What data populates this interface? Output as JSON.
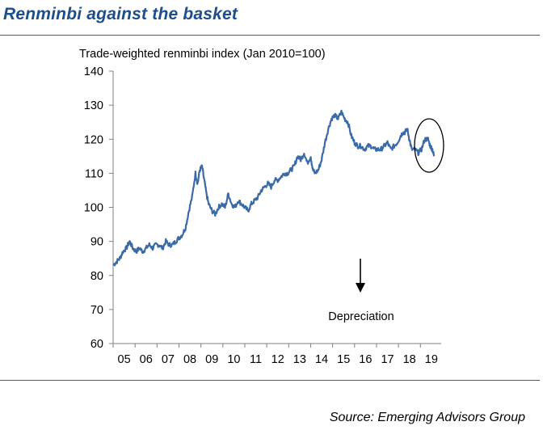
{
  "title": "Renminbi against the basket",
  "source": "Source:  Emerging Advisors Group",
  "chart_data": {
    "type": "line",
    "subtitle": "Trade-weighted renminbi index (Jan 2010=100)",
    "xlabel": "",
    "ylabel": "",
    "x_ticks": [
      "05",
      "06",
      "07",
      "08",
      "09",
      "10",
      "11",
      "12",
      "13",
      "14",
      "15",
      "16",
      "17",
      "18",
      "19"
    ],
    "xlim": [
      2005.0,
      2019.8
    ],
    "ylim": [
      60,
      140
    ],
    "y_ticks": [
      60,
      70,
      80,
      90,
      100,
      110,
      120,
      130,
      140
    ],
    "grid": false,
    "series": [
      {
        "color": "#3a6aa8",
        "x": [
          2005.0,
          2005.15,
          2005.3,
          2005.45,
          2005.6,
          2005.75,
          2005.9,
          2006.05,
          2006.2,
          2006.35,
          2006.5,
          2006.65,
          2006.8,
          2006.95,
          2007.1,
          2007.25,
          2007.4,
          2007.55,
          2007.7,
          2007.85,
          2008.0,
          2008.15,
          2008.3,
          2008.45,
          2008.6,
          2008.75,
          2008.85,
          2008.95,
          2009.05,
          2009.15,
          2009.25,
          2009.35,
          2009.5,
          2009.65,
          2009.8,
          2009.95,
          2010.1,
          2010.25,
          2010.4,
          2010.55,
          2010.7,
          2010.85,
          2011.0,
          2011.15,
          2011.3,
          2011.45,
          2011.6,
          2011.75,
          2011.9,
          2012.05,
          2012.2,
          2012.35,
          2012.5,
          2012.65,
          2012.8,
          2012.95,
          2013.1,
          2013.25,
          2013.4,
          2013.55,
          2013.7,
          2013.85,
          2014.0,
          2014.1,
          2014.2,
          2014.35,
          2014.5,
          2014.65,
          2014.8,
          2014.95,
          2015.1,
          2015.25,
          2015.4,
          2015.55,
          2015.7,
          2015.85,
          2016.0,
          2016.15,
          2016.3,
          2016.45,
          2016.6,
          2016.75,
          2016.9,
          2017.05,
          2017.2,
          2017.35,
          2017.5,
          2017.65,
          2017.8,
          2017.95,
          2018.1,
          2018.2,
          2018.3,
          2018.4,
          2018.5,
          2018.6,
          2018.75,
          2018.9,
          2019.05,
          2019.2,
          2019.35,
          2019.45,
          2019.55,
          2019.62
        ],
        "y": [
          83,
          84,
          85,
          87,
          88,
          90,
          88,
          87,
          88,
          87,
          88,
          89,
          88,
          89,
          89,
          88,
          90,
          89,
          89,
          90,
          91,
          92,
          94,
          99,
          103,
          110,
          107,
          111,
          112,
          108,
          104,
          101,
          99,
          98,
          100,
          101,
          100,
          104,
          101,
          100,
          102,
          101,
          100,
          99,
          101,
          102,
          103,
          105,
          106,
          107,
          106,
          108,
          108,
          109,
          110,
          110,
          111,
          112,
          115,
          114,
          116,
          113,
          115,
          111,
          110,
          111,
          114,
          119,
          123,
          126,
          127,
          126,
          128,
          126,
          125,
          121,
          119,
          118,
          118,
          117,
          118,
          118,
          117,
          117,
          117,
          118,
          119,
          117,
          118,
          119,
          121,
          122,
          122,
          123,
          120,
          117,
          117,
          116,
          117,
          120,
          120,
          118,
          117,
          115
        ]
      }
    ],
    "annotations": [
      {
        "text": "Depreciation",
        "arrow": "down"
      }
    ]
  }
}
